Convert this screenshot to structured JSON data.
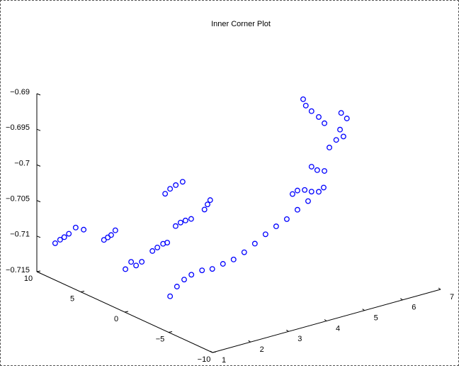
{
  "chart_data": {
    "type": "scatter3",
    "title": "Inner Corner Plot",
    "color": "#0000ff",
    "marker": "circle",
    "x": [
      1.02,
      1.15,
      1.26,
      1.38,
      1.56,
      1.77,
      1.61,
      1.71,
      1.8,
      1.91,
      1.02,
      1.17,
      1.3,
      1.45,
      1.73,
      1.86,
      2.01,
      2.12,
      2.34,
      2.47,
      2.6,
      2.75,
      3.1,
      3.18,
      3.25,
      3.22,
      3.35,
      3.5,
      3.68,
      1.04,
      1.22,
      1.41,
      1.6,
      1.88,
      2.15,
      2.43,
      2.71,
      2.99,
      3.27,
      3.55,
      3.83,
      4.11,
      4.39,
      4.67,
      4.95,
      5.08,
      4.26,
      4.39,
      4.58,
      4.76,
      4.76,
      4.91,
      5.1,
      5.23,
      5.41,
      5.6,
      5.51,
      5.69,
      5.54,
      4.54,
      4.61,
      4.76,
      4.95,
      5.1
    ],
    "y": [
      8,
      8,
      8,
      8,
      8,
      8,
      5,
      5,
      5,
      5,
      0,
      0,
      0,
      0,
      0,
      0,
      0,
      0,
      0,
      0,
      0,
      0,
      0,
      0,
      0,
      5,
      5,
      5,
      5,
      -5,
      -5,
      -5,
      -5,
      -5,
      -5,
      -5,
      -5,
      -5,
      -5,
      -5,
      -5,
      -5,
      -5,
      -5,
      -5,
      -5,
      -5,
      -5,
      -5,
      -5,
      -5,
      -5,
      -5,
      -5,
      -5,
      -5,
      -5,
      -5,
      -5,
      -5,
      -5,
      -5,
      -5,
      -5
    ],
    "z": [
      -0.7099,
      -0.7096,
      -0.7094,
      -0.7091,
      -0.7085,
      -0.7091,
      -0.7086,
      -0.7084,
      -0.7082,
      -0.7077,
      -0.709,
      -0.7082,
      -0.7089,
      -0.7086,
      -0.7075,
      -0.7072,
      -0.7069,
      -0.7069,
      -0.7049,
      -0.7046,
      -0.7045,
      -0.7045,
      -0.7037,
      -0.7031,
      -0.7026,
      -0.7045,
      -0.704,
      -0.7037,
      -0.7035,
      -0.71,
      -0.7089,
      -0.7082,
      -0.7078,
      -0.7076,
      -0.7078,
      -0.7075,
      -0.7073,
      -0.7067,
      -0.7059,
      -0.705,
      -0.7043,
      -0.7037,
      -0.7028,
      -0.702,
      -0.7011,
      -0.7007,
      -0.7004,
      -0.7001,
      -0.7003,
      -0.7008,
      -0.6973,
      -0.698,
      -0.6984,
      -0.6953,
      -0.6945,
      -0.6943,
      -0.6932,
      -0.6919,
      -0.6909,
      -0.6875,
      -0.6885,
      -0.6895,
      -0.6906,
      -0.6917
    ],
    "xlim": [
      1,
      7
    ],
    "xticks": [
      1,
      2,
      3,
      4,
      5,
      6,
      7
    ],
    "ylim": [
      -10,
      10
    ],
    "yticks": [
      {
        "value": -10,
        "label": "−10"
      },
      {
        "value": -5,
        "label": "−5"
      },
      0,
      5,
      10
    ],
    "zlim": [
      -0.715,
      -0.69
    ],
    "zticks": [
      {
        "value": -0.715,
        "label": "−0.715"
      },
      {
        "value": -0.71,
        "label": "−0.71"
      },
      {
        "value": -0.705,
        "label": "−0.705"
      },
      {
        "value": -0.7,
        "label": "−0.7"
      },
      {
        "value": -0.695,
        "label": "−0.695"
      },
      {
        "value": -0.69,
        "label": "−0.69"
      }
    ]
  }
}
